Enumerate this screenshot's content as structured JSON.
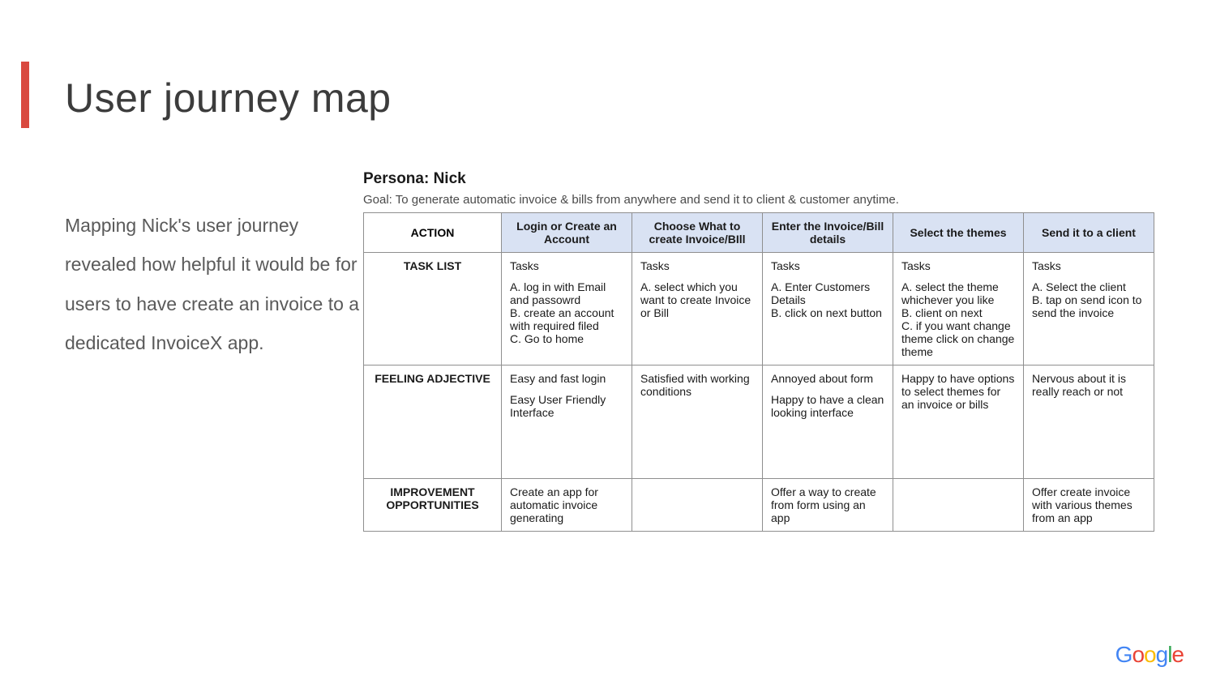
{
  "title": "User journey map",
  "body_text": "Mapping Nick's user journey revealed how helpful it would be for\nusers to have create an invoice to a dedicated InvoiceX app.",
  "persona_label": "Persona: Nick",
  "goal_text": "Goal: To generate automatic invoice & bills from anywhere and send it to client & customer anytime.",
  "colors": {
    "accent": "#d9493f",
    "header_bg": "#d9e2f3",
    "border": "#8f8f8f",
    "title_color": "#3c3c3c",
    "body_color": "#5a5a5a"
  },
  "table": {
    "action_head": "ACTION",
    "columns": [
      "Login or Create an Account",
      "Choose What to create  Invoice/BIll",
      "Enter the Invoice/Bill details",
      "Select the themes",
      "Send it to a client"
    ],
    "rows": [
      {
        "label": "TASK LIST",
        "cells": [
          "Tasks\n\nA. log in with Email and passowrd\nB. create an account with required filed\nC. Go to home",
          "Tasks\n\nA. select which you want to create Invoice or Bill",
          "Tasks\n\nA. Enter Customers Details\nB. click on next button",
          "Tasks\n\nA. select the theme whichever you like\nB. client on next\nC. if you want change theme click on change theme",
          "Tasks\n\nA. Select the client\nB. tap on send icon to send the invoice"
        ]
      },
      {
        "label": "FEELING ADJECTIVE",
        "cells": [
          "Easy and fast login\n\nEasy User Friendly Interface",
          "Satisfied with working conditions",
          "Annoyed about form\n\nHappy to have a clean looking interface",
          "Happy to have options to select themes for an invoice or bills",
          "Nervous about it is really reach or not"
        ]
      },
      {
        "label": "IMPROVEMENT OPPORTUNITIES",
        "cells": [
          "Create an app for automatic invoice generating",
          "",
          "Offer a way to create from form using an app",
          "",
          "Offer create invoice with various themes from an app"
        ]
      }
    ]
  },
  "logo": {
    "text": "Google"
  }
}
